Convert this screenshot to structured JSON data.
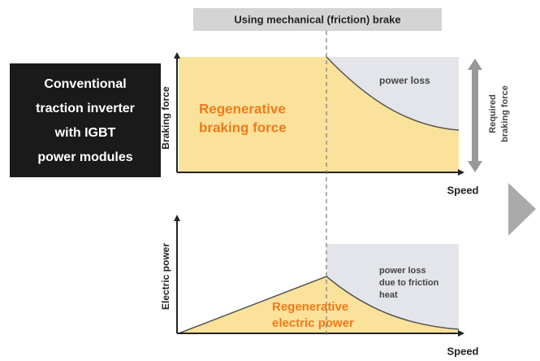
{
  "banner": "Using mechanical (friction) brake",
  "side_label": [
    "Conventional",
    "traction inverter",
    "with IGBT",
    "power modules"
  ],
  "top_chart": {
    "y_label": "Braking force",
    "x_label": "Speed",
    "area_label": [
      "Regenerative",
      "braking force"
    ],
    "loss_label": "power loss",
    "required_label": [
      "Required",
      "braking force"
    ]
  },
  "bottom_chart": {
    "y_label": "Electric power",
    "x_label": "Speed",
    "area_label": [
      "Regenerative",
      "electric power"
    ],
    "loss_label": [
      "power loss",
      "due to friction",
      "heat"
    ]
  }
}
